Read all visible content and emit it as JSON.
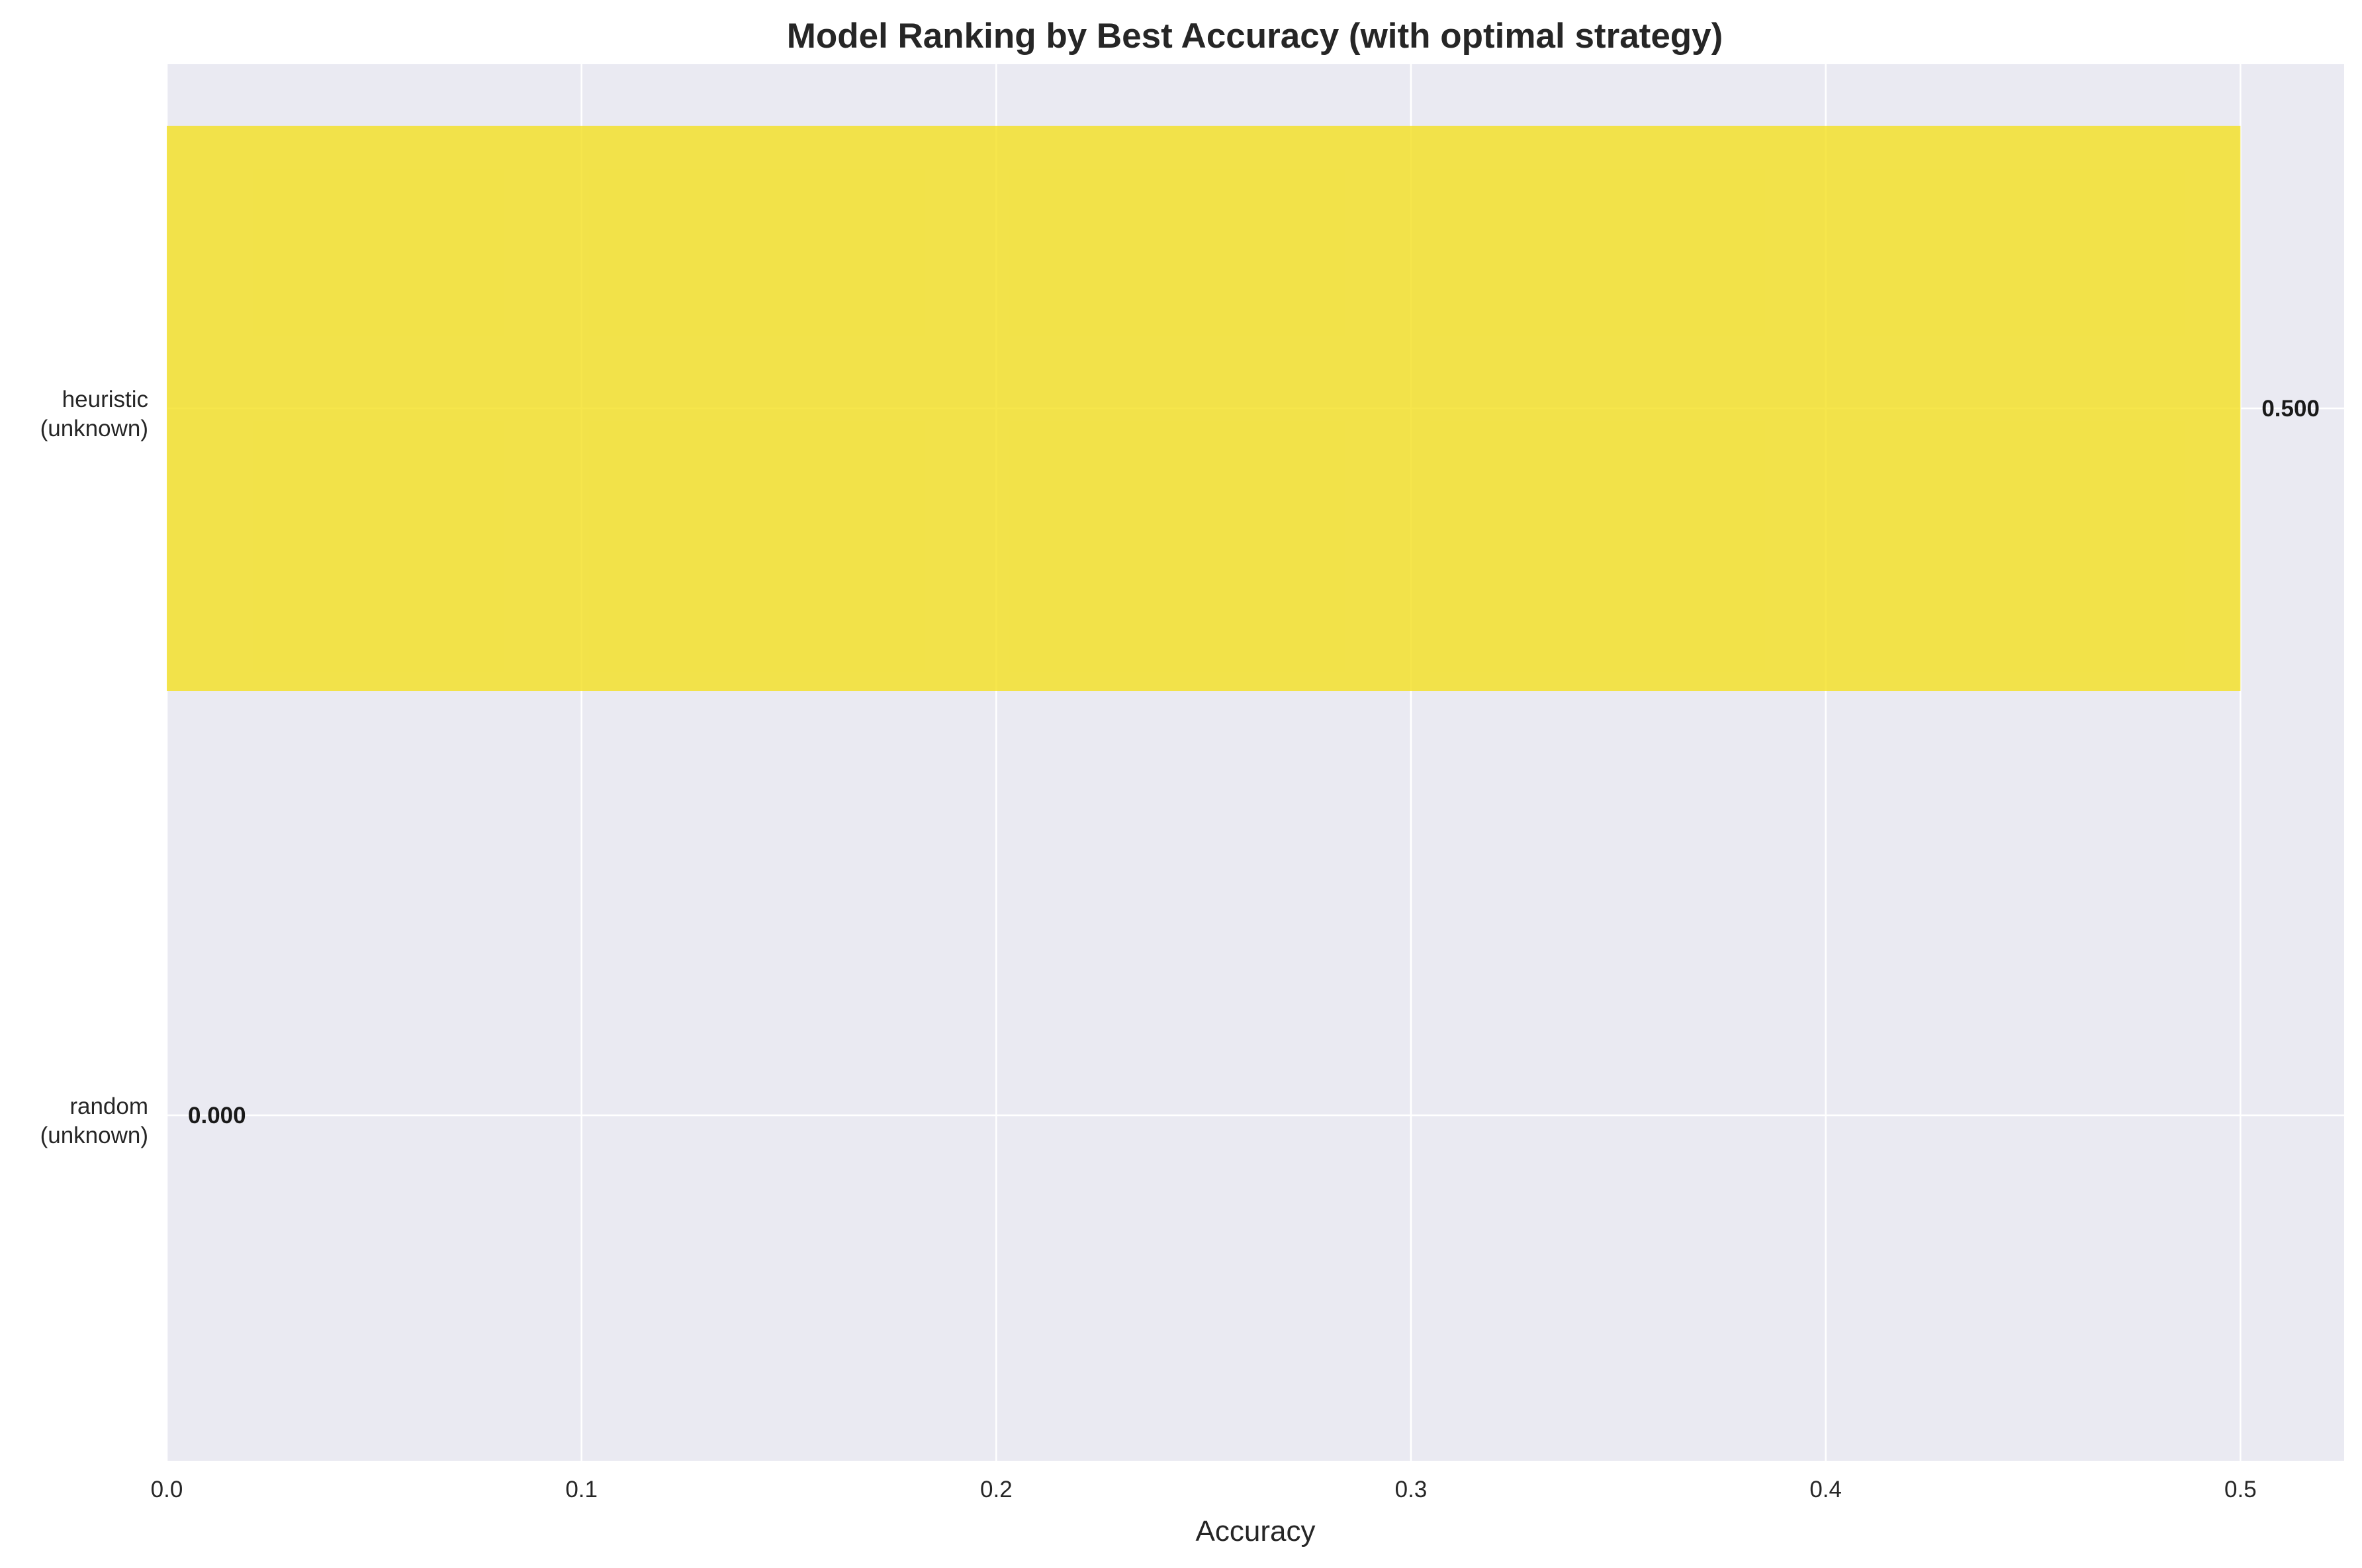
{
  "chart_data": {
    "type": "bar",
    "orientation": "horizontal",
    "title": "Model Ranking by Best Accuracy (with optimal strategy)",
    "xlabel": "Accuracy",
    "ylabel": "",
    "categories": [
      [
        "heuristic",
        "(unknown)"
      ],
      [
        "random",
        "(unknown)"
      ]
    ],
    "values": [
      0.5,
      0.0
    ],
    "value_labels": [
      "0.500",
      "0.000"
    ],
    "bar_colors": [
      "#f4e01f",
      "#440154"
    ],
    "xlim": [
      0,
      0.525
    ],
    "xticks": [
      0.0,
      0.1,
      0.2,
      0.3,
      0.4,
      0.5
    ],
    "xtick_labels": [
      "0.0",
      "0.1",
      "0.2",
      "0.3",
      "0.4",
      "0.5"
    ],
    "grid": true,
    "legend": "none",
    "plot_background": "#eaeaf2",
    "grid_color": "#ffffff"
  }
}
